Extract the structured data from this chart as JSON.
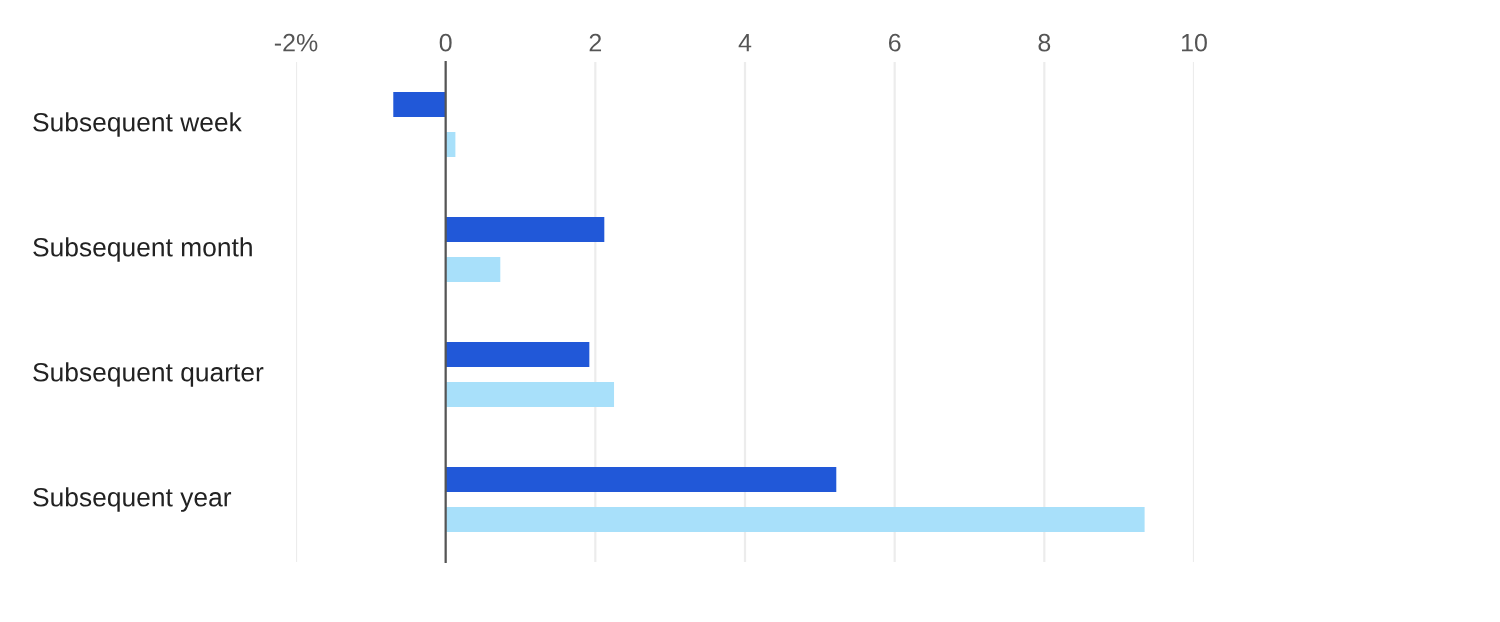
{
  "chart_data": {
    "type": "bar",
    "orientation": "horizontal",
    "categories": [
      "Subsequent week",
      "Subsequent month",
      "Subsequent quarter",
      "Subsequent year"
    ],
    "series": [
      {
        "color": "#2158d8",
        "values": [
          -0.7,
          2.12,
          1.92,
          5.22
        ]
      },
      {
        "color": "#a8e0fa",
        "values": [
          0.13,
          0.73,
          2.25,
          9.34
        ]
      }
    ],
    "xlim": [
      -2,
      10
    ],
    "xticks": [
      {
        "value": -2,
        "label": "-2%"
      },
      0,
      2,
      4,
      6,
      8,
      10
    ],
    "grid": "x"
  }
}
